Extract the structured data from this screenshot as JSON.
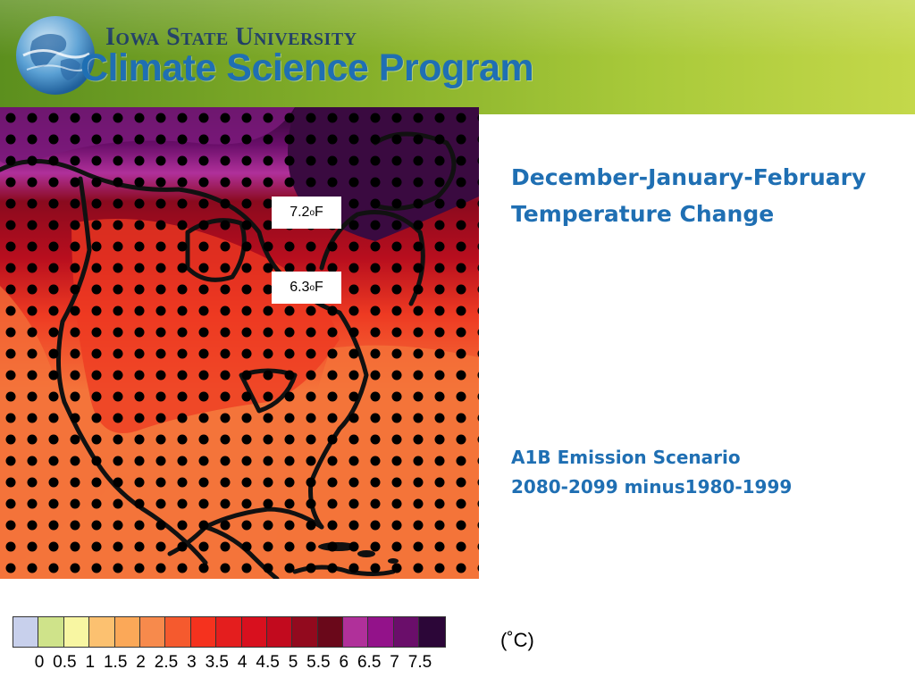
{
  "header": {
    "university": "Iowa State University",
    "program": "Climate Science Program",
    "logo_icon": "globe-logo-icon"
  },
  "map": {
    "labels": [
      {
        "value": "7.2",
        "unit": "F"
      },
      {
        "value": "6.3",
        "unit": "F"
      }
    ],
    "colors": {
      "ocean_warm": "#f4743a",
      "land_warm": "#ee3a22",
      "north_dark": "#8a0a1e",
      "arctic_purple": "#7a1a7a",
      "arctic_deep": "#2a0630",
      "coast": "#111111"
    }
  },
  "title": {
    "line1": "December-January-February",
    "line2": "Temperature Change"
  },
  "subtitle": {
    "line1": "A1B Emission Scenario",
    "line2": "2080-2099 minus1980-1999"
  },
  "legend": {
    "unit": "(˚C)",
    "ticks": [
      "0",
      "0.5",
      "1",
      "1.5",
      "2",
      "2.5",
      "3",
      "3.5",
      "4",
      "4.5",
      "5",
      "5.5",
      "6",
      "6.5",
      "7",
      "7.5"
    ],
    "colors": [
      "#c8d0ec",
      "#cfe38a",
      "#f8f6a2",
      "#fcc170",
      "#fba858",
      "#f78a4c",
      "#f55a2e",
      "#f5321e",
      "#e41e1e",
      "#d8101e",
      "#c20a1e",
      "#920a1e",
      "#6a081a",
      "#b0309a",
      "#93128a",
      "#6a0e6a",
      "#2c0638"
    ]
  }
}
